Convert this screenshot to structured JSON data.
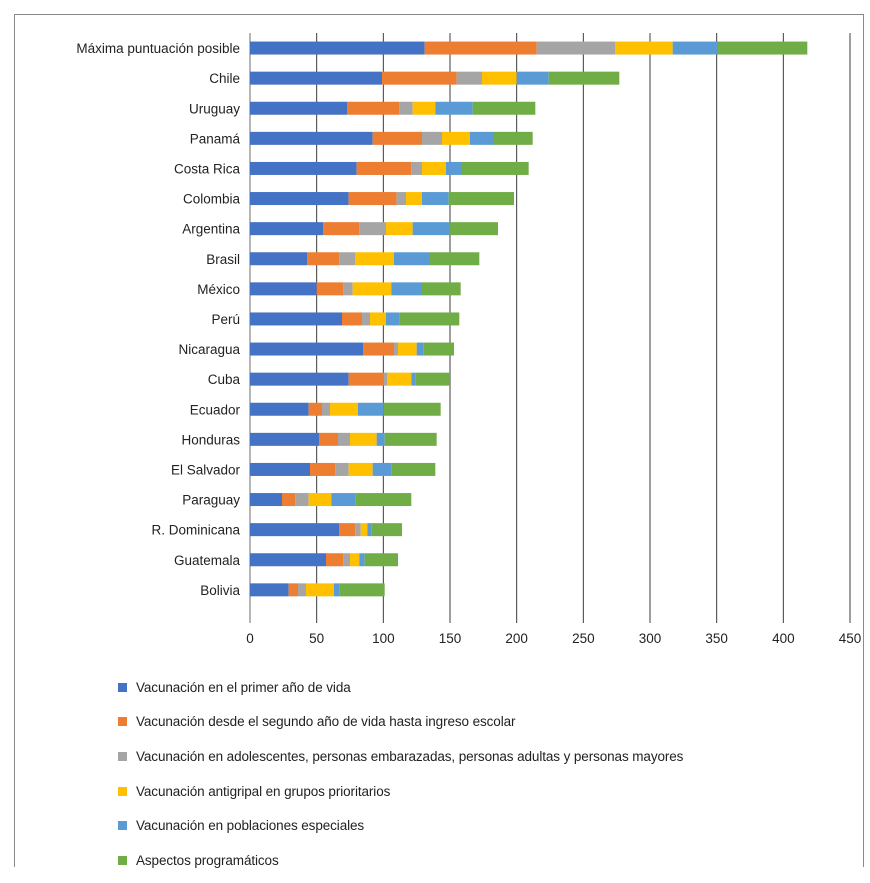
{
  "chart_data": {
    "type": "bar",
    "orientation": "horizontal",
    "stacked": true,
    "categories": [
      "Máxima puntuación posible",
      "Chile",
      "Uruguay",
      "Panamá",
      "Costa Rica",
      "Colombia",
      "Argentina",
      "Brasil",
      "México",
      "Perú",
      "Nicaragua",
      "Cuba",
      "Ecuador",
      "Honduras",
      "El Salvador",
      "Paraguay",
      "R. Dominicana",
      "Guatemala",
      "Bolivia"
    ],
    "series": [
      {
        "name": "Vacunación en el primer año de vida",
        "color": "#4472c4",
        "values": [
          131,
          99,
          73,
          92,
          80,
          74,
          55,
          43,
          50,
          69,
          85,
          74,
          44,
          52,
          45,
          24,
          67,
          57,
          29
        ]
      },
      {
        "name": "Vacunación desde el segundo año de vida hasta ingreso escolar",
        "color": "#ed7d31",
        "values": [
          84,
          56,
          39,
          37,
          41,
          36,
          27,
          24,
          20,
          15,
          23,
          26,
          10,
          14,
          19,
          10,
          12,
          13,
          7
        ]
      },
      {
        "name": "Vacunación en adolescentes, personas embarazadas, personas adultas y personas mayores",
        "color": "#a5a5a5",
        "values": [
          59,
          19,
          10,
          15,
          8,
          7,
          20,
          12,
          7,
          6,
          3,
          3,
          6,
          9,
          10,
          10,
          4,
          5,
          6
        ]
      },
      {
        "name": "Vacunación antigripal en grupos prioritarios",
        "color": "#ffc000",
        "values": [
          43,
          26,
          17,
          21,
          18,
          12,
          20,
          29,
          29,
          12,
          14,
          18,
          21,
          20,
          18,
          17,
          5,
          7,
          21
        ]
      },
      {
        "name": "Vacunación en poblaciones especiales",
        "color": "#5b9bd5",
        "values": [
          34,
          24,
          28,
          18,
          12,
          20,
          28,
          27,
          23,
          10,
          5,
          3,
          19,
          6,
          14,
          18,
          3,
          4,
          4
        ]
      },
      {
        "name": "Aspectos programáticos",
        "color": "#70ad47",
        "values": [
          67,
          53,
          47,
          29,
          50,
          49,
          36,
          37,
          29,
          45,
          23,
          26,
          43,
          39,
          33,
          42,
          23,
          25,
          34
        ]
      }
    ],
    "xlim": [
      0,
      450
    ],
    "xticks": [
      "0",
      "50",
      "100",
      "150",
      "200",
      "250",
      "300",
      "350",
      "400",
      "450"
    ],
    "grid": "vertical",
    "legend": "bottom"
  }
}
